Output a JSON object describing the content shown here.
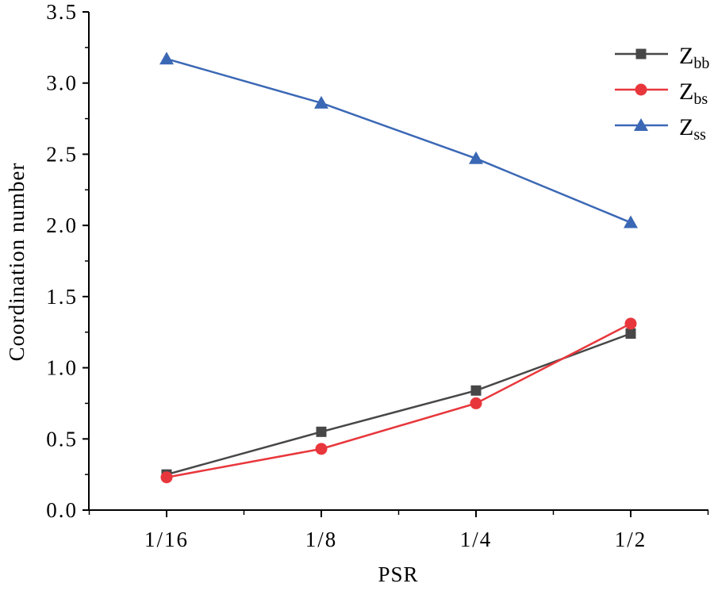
{
  "chart_data": {
    "type": "line",
    "title": "",
    "xlabel": "PSR",
    "ylabel": "Coordination number",
    "categories": [
      "1/16",
      "1/8",
      "1/4",
      "1/2"
    ],
    "ylim": [
      0,
      3.5
    ],
    "yticks": [
      "0.0",
      "0.5",
      "1.0",
      "1.5",
      "2.0",
      "2.5",
      "3.0",
      "3.5"
    ],
    "legend_position": "top-right",
    "grid": false,
    "series": [
      {
        "name": "Z",
        "sub": "bb",
        "color": "#474747",
        "marker": "square",
        "values": [
          0.25,
          0.55,
          0.84,
          1.24
        ]
      },
      {
        "name": "Z",
        "sub": "bs",
        "color": "#e8373c",
        "marker": "circle",
        "values": [
          0.23,
          0.43,
          0.75,
          1.31
        ]
      },
      {
        "name": "Z",
        "sub": "ss",
        "color": "#3b68b5",
        "marker": "triangle",
        "values": [
          3.17,
          2.86,
          2.47,
          2.02
        ]
      }
    ]
  }
}
